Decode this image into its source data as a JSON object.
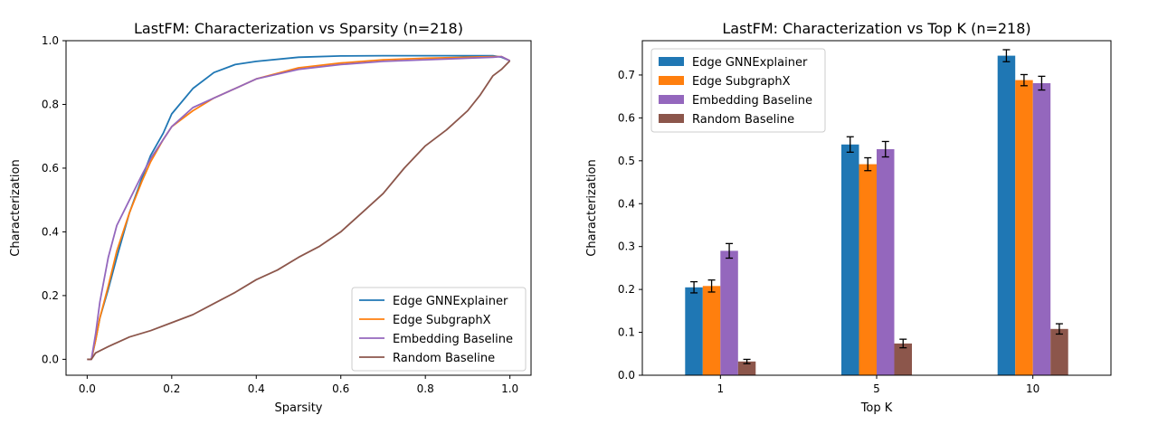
{
  "colors": {
    "gnn": "#1f77b4",
    "subgraphx": "#ff7f0e",
    "embedding": "#9467bd",
    "random": "#8c564b"
  },
  "chart_data": [
    {
      "type": "line",
      "title": "LastFM: Characterization vs Sparsity (n=218)",
      "xlabel": "Sparsity",
      "ylabel": "Characterization",
      "xlim": [
        -0.05,
        1.05
      ],
      "ylim": [
        -0.05,
        1.0
      ],
      "xticks": [
        0.0,
        0.2,
        0.4,
        0.6,
        0.8,
        1.0
      ],
      "xtick_labels": [
        "0.0",
        "0.2",
        "0.4",
        "0.6",
        "0.8",
        "1.0"
      ],
      "yticks": [
        0.0,
        0.2,
        0.4,
        0.6,
        0.8,
        1.0
      ],
      "ytick_labels": [
        "0.0",
        "0.2",
        "0.4",
        "0.6",
        "0.8",
        "1.0"
      ],
      "grid": false,
      "legend": "lower-right",
      "series": [
        {
          "name": "Edge GNNExplainer",
          "color": "#1f77b4",
          "x": [
            0.0,
            0.01,
            0.02,
            0.03,
            0.05,
            0.07,
            0.1,
            0.13,
            0.15,
            0.18,
            0.2,
            0.25,
            0.3,
            0.35,
            0.4,
            0.5,
            0.6,
            0.7,
            0.8,
            0.9,
            0.96,
            0.98,
            1.0
          ],
          "y": [
            0.0,
            0.0,
            0.06,
            0.13,
            0.22,
            0.32,
            0.46,
            0.57,
            0.64,
            0.71,
            0.77,
            0.85,
            0.9,
            0.925,
            0.935,
            0.948,
            0.952,
            0.953,
            0.953,
            0.953,
            0.953,
            0.948,
            0.937
          ]
        },
        {
          "name": "Edge SubgraphX",
          "color": "#ff7f0e",
          "x": [
            0.0,
            0.01,
            0.02,
            0.03,
            0.05,
            0.07,
            0.1,
            0.13,
            0.15,
            0.18,
            0.2,
            0.25,
            0.3,
            0.35,
            0.4,
            0.5,
            0.6,
            0.7,
            0.8,
            0.9,
            0.96,
            0.98,
            1.0
          ],
          "y": [
            0.0,
            0.0,
            0.06,
            0.13,
            0.23,
            0.34,
            0.46,
            0.56,
            0.62,
            0.69,
            0.73,
            0.78,
            0.82,
            0.85,
            0.88,
            0.915,
            0.93,
            0.94,
            0.945,
            0.948,
            0.95,
            0.95,
            0.937
          ]
        },
        {
          "name": "Embedding Baseline",
          "color": "#9467bd",
          "x": [
            0.0,
            0.01,
            0.02,
            0.03,
            0.05,
            0.07,
            0.1,
            0.13,
            0.15,
            0.18,
            0.2,
            0.25,
            0.3,
            0.35,
            0.4,
            0.5,
            0.6,
            0.7,
            0.8,
            0.9,
            0.96,
            0.98,
            1.0
          ],
          "y": [
            0.0,
            0.0,
            0.08,
            0.18,
            0.32,
            0.42,
            0.5,
            0.58,
            0.63,
            0.69,
            0.73,
            0.79,
            0.82,
            0.85,
            0.88,
            0.91,
            0.925,
            0.935,
            0.94,
            0.945,
            0.948,
            0.95,
            0.937
          ]
        },
        {
          "name": "Random Baseline",
          "color": "#8c564b",
          "x": [
            0.0,
            0.01,
            0.02,
            0.05,
            0.1,
            0.15,
            0.2,
            0.25,
            0.3,
            0.35,
            0.4,
            0.45,
            0.5,
            0.55,
            0.6,
            0.65,
            0.7,
            0.75,
            0.8,
            0.85,
            0.9,
            0.93,
            0.96,
            0.98,
            1.0
          ],
          "y": [
            0.0,
            0.0,
            0.02,
            0.04,
            0.07,
            0.09,
            0.115,
            0.14,
            0.175,
            0.21,
            0.25,
            0.28,
            0.32,
            0.355,
            0.4,
            0.46,
            0.52,
            0.6,
            0.67,
            0.72,
            0.78,
            0.83,
            0.89,
            0.91,
            0.937
          ]
        }
      ]
    },
    {
      "type": "bar",
      "title": "LastFM: Characterization vs Top K (n=218)",
      "xlabel": "Top K",
      "ylabel": "Characterization",
      "categories": [
        "1",
        "5",
        "10"
      ],
      "ylim": [
        0.0,
        0.78
      ],
      "yticks": [
        0.0,
        0.1,
        0.2,
        0.3,
        0.4,
        0.5,
        0.6,
        0.7
      ],
      "ytick_labels": [
        "0.0",
        "0.1",
        "0.2",
        "0.3",
        "0.4",
        "0.5",
        "0.6",
        "0.7"
      ],
      "grid": false,
      "legend": "upper-left",
      "series": [
        {
          "name": "Edge GNNExplainer",
          "color": "#1f77b4",
          "values": [
            0.205,
            0.538,
            0.745
          ],
          "errors": [
            0.013,
            0.018,
            0.014
          ]
        },
        {
          "name": "Edge SubgraphX",
          "color": "#ff7f0e",
          "values": [
            0.208,
            0.492,
            0.688
          ],
          "errors": [
            0.014,
            0.015,
            0.013
          ]
        },
        {
          "name": "Embedding Baseline",
          "color": "#9467bd",
          "values": [
            0.29,
            0.527,
            0.681
          ],
          "errors": [
            0.017,
            0.018,
            0.016
          ]
        },
        {
          "name": "Random Baseline",
          "color": "#8c564b",
          "values": [
            0.032,
            0.074,
            0.108
          ],
          "errors": [
            0.005,
            0.01,
            0.012
          ]
        }
      ]
    }
  ]
}
